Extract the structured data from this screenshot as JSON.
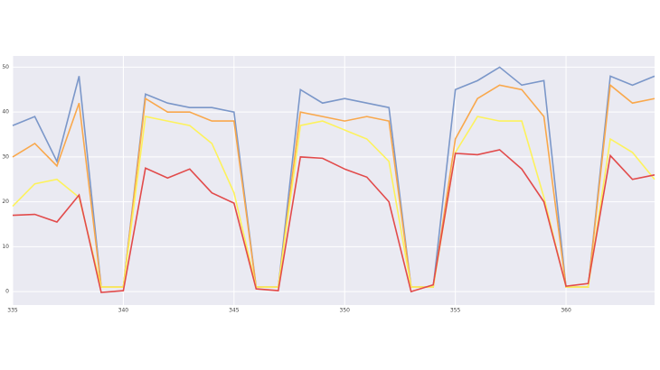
{
  "chart_data": {
    "type": "line",
    "x": [
      335,
      336,
      337,
      338,
      339,
      340,
      341,
      342,
      343,
      344,
      345,
      346,
      347,
      348,
      349,
      350,
      351,
      352,
      353,
      354,
      355,
      356,
      357,
      358,
      359,
      360,
      361,
      362,
      363,
      364
    ],
    "series": [
      {
        "color": "#7b97c9",
        "values": [
          37,
          39,
          29,
          48,
          1,
          1,
          44,
          42,
          41,
          41,
          40,
          1,
          1,
          45,
          42,
          43,
          42,
          41,
          1,
          1,
          45,
          47,
          50,
          46,
          47,
          1,
          1,
          48,
          46,
          48
        ]
      },
      {
        "color": "#f9a84c",
        "values": [
          30,
          33,
          28,
          42,
          1,
          1,
          43,
          40,
          40,
          38,
          38,
          1,
          1,
          40,
          39,
          38,
          39,
          38,
          1,
          1,
          34,
          43,
          46,
          45,
          39,
          1,
          1,
          46,
          42,
          43
        ]
      },
      {
        "color": "#fdf25c",
        "values": [
          19,
          24,
          25,
          21,
          1,
          1,
          39,
          38,
          37,
          33,
          22,
          1,
          1,
          37,
          38,
          36,
          34,
          29,
          1,
          1,
          31,
          39,
          38,
          38,
          21,
          1,
          1,
          34,
          31,
          25
        ]
      },
      {
        "color": "#e24b4b",
        "values": [
          17,
          17.2,
          15.5,
          21.5,
          -0.2,
          0.2,
          27.5,
          25.3,
          27.3,
          22,
          19.7,
          0.6,
          0.2,
          30,
          29.7,
          27.3,
          25.5,
          20,
          0,
          1.5,
          30.8,
          30.5,
          31.6,
          27.3,
          20,
          1.2,
          1.8,
          30.3,
          25,
          26
        ]
      }
    ],
    "xlim": [
      335,
      364
    ],
    "ylim": [
      -3,
      52.5
    ],
    "xticks": [
      335,
      340,
      345,
      350,
      355,
      360
    ],
    "yticks": [
      0,
      10,
      20,
      30,
      40,
      50
    ],
    "grid": true
  }
}
